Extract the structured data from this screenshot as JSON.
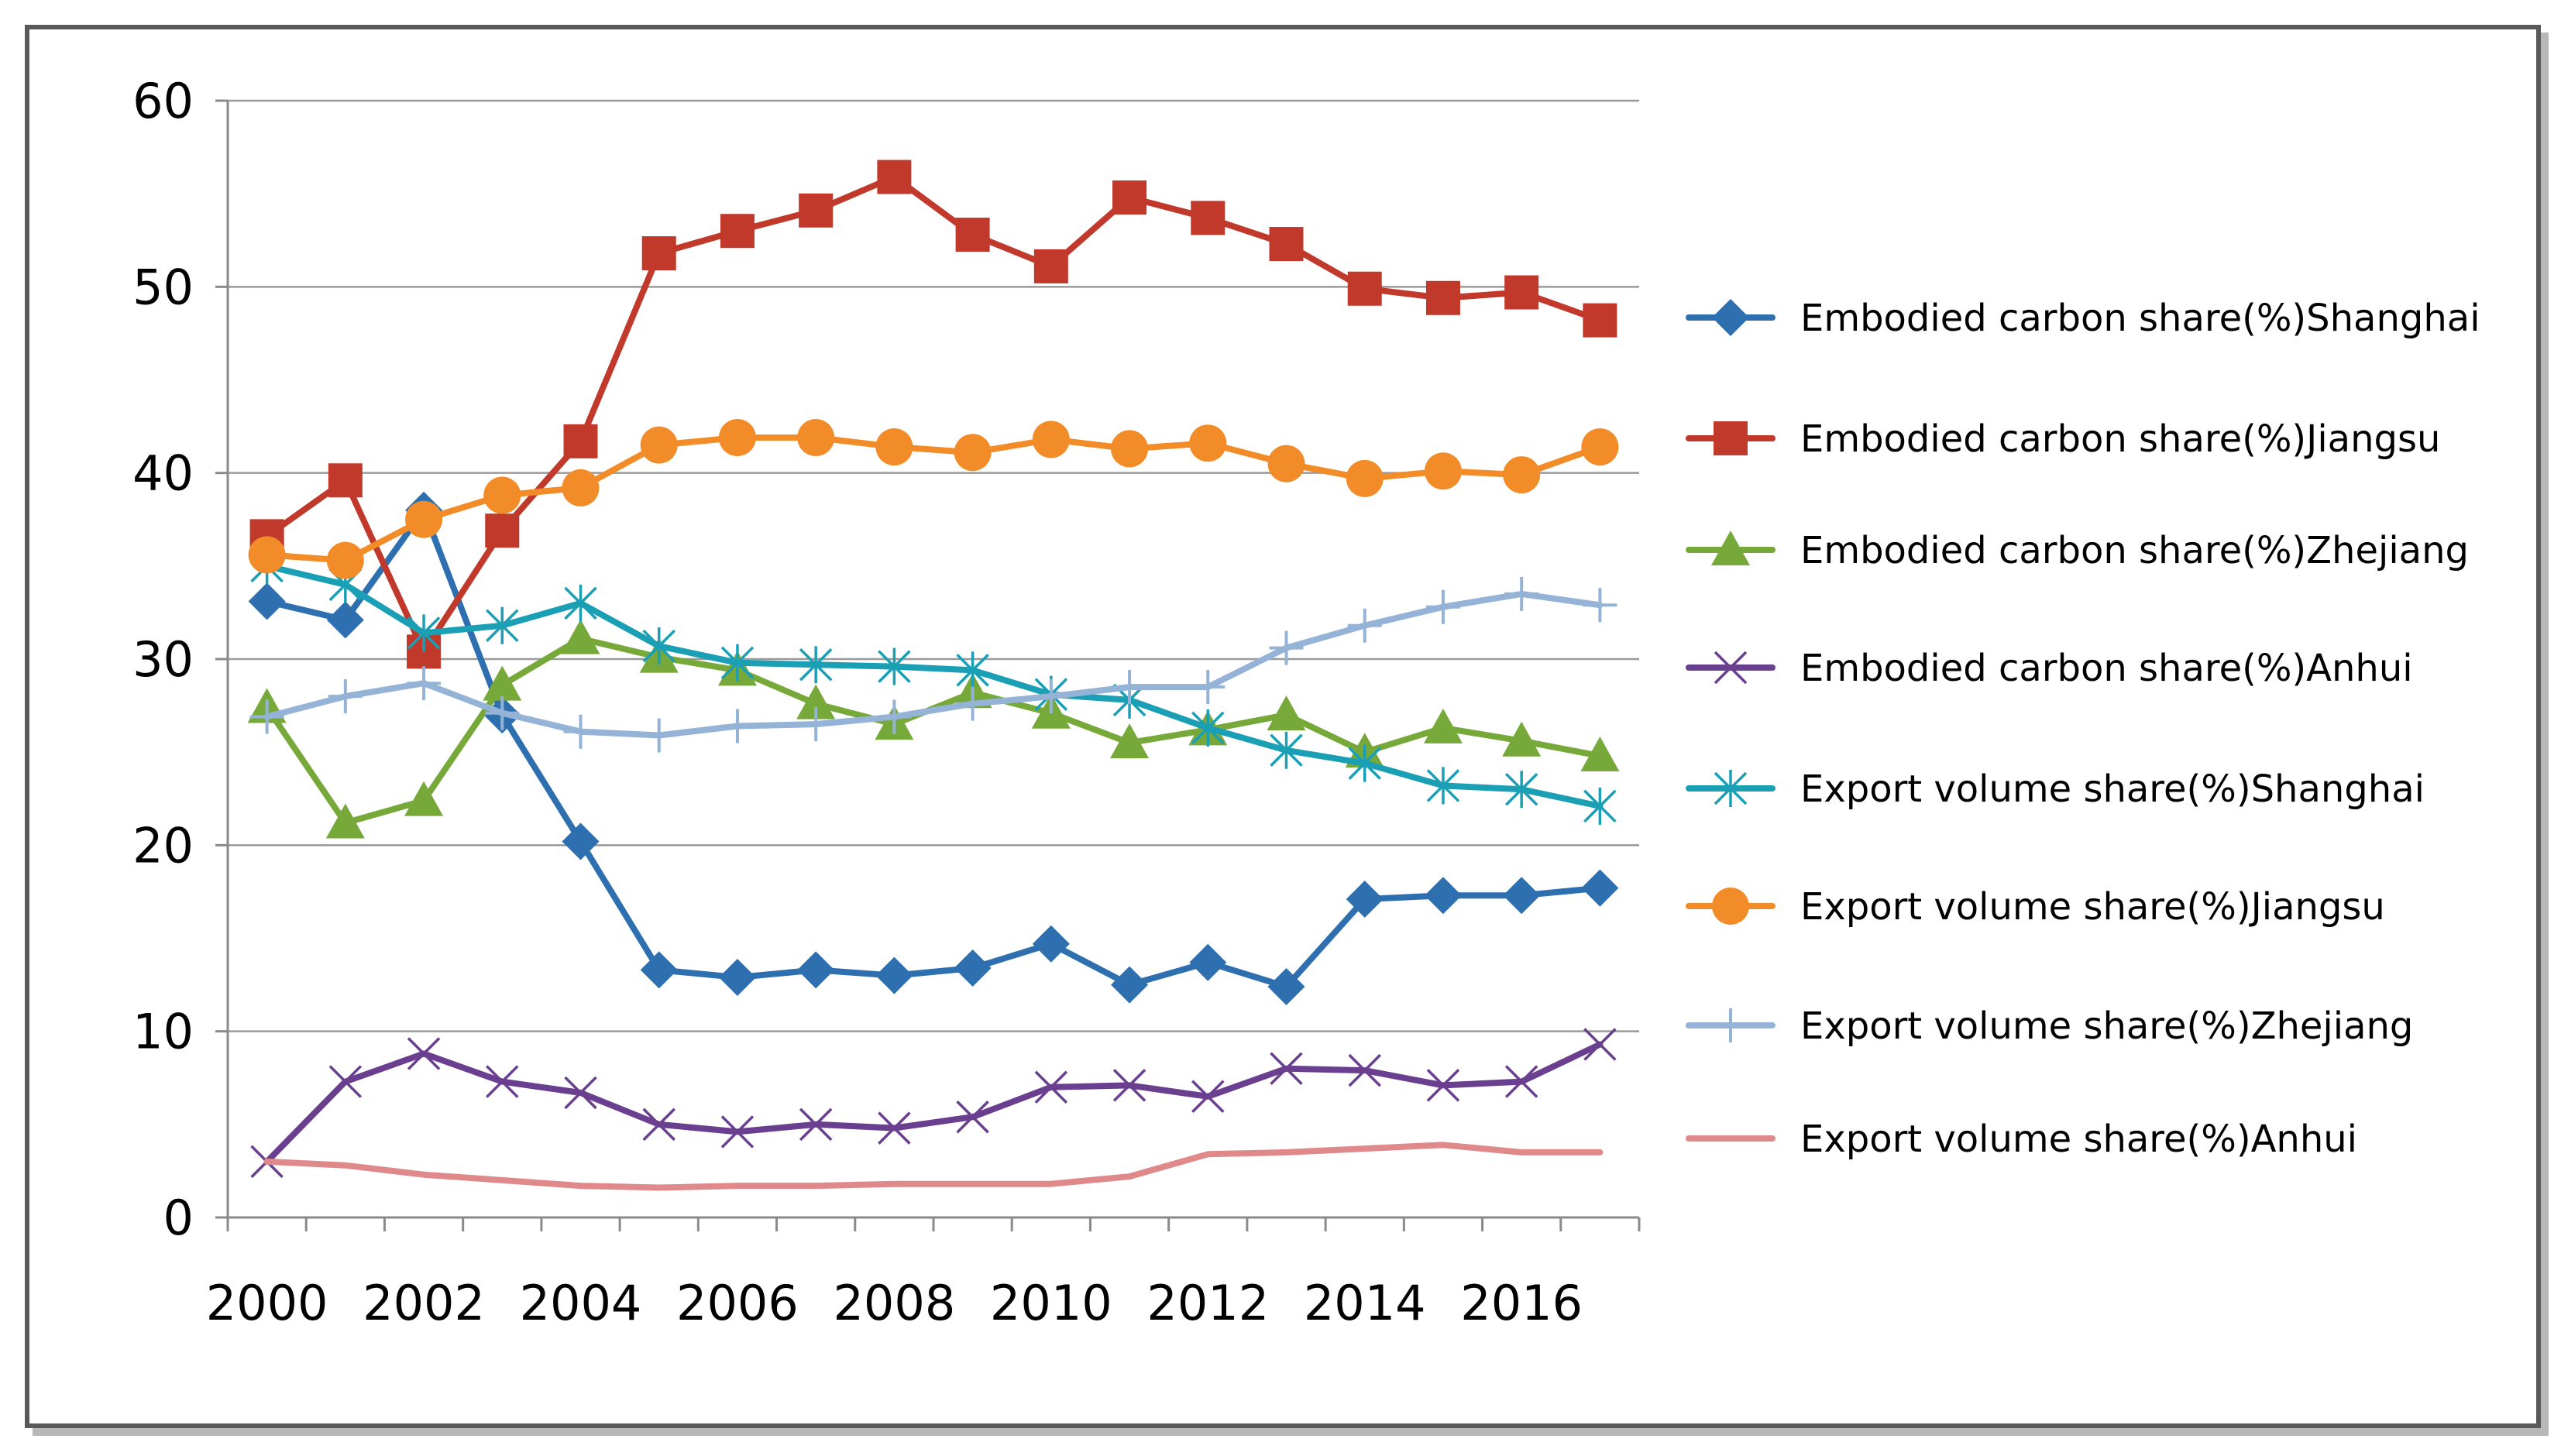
{
  "chart_data": {
    "type": "line",
    "title": "",
    "xlabel": "",
    "ylabel": "",
    "ylim": [
      0,
      60
    ],
    "y_ticks": [
      "0",
      "10",
      "20",
      "30",
      "40",
      "50",
      "60"
    ],
    "x": [
      2000,
      2001,
      2002,
      2003,
      2004,
      2005,
      2006,
      2007,
      2008,
      2009,
      2010,
      2011,
      2012,
      2013,
      2014,
      2015,
      2016,
      2017
    ],
    "x_tick_labels": [
      "2000",
      "2002",
      "2004",
      "2006",
      "2008",
      "2010",
      "2012",
      "2014",
      "2016"
    ],
    "grid": "horizontal",
    "legend_position": "right",
    "series": [
      {
        "name": "Embodied carbon share(%)Shanghai",
        "color": "#2e6fb0",
        "marker": "diamond",
        "values": [
          33.1,
          32.1,
          38.0,
          27.0,
          20.2,
          13.3,
          12.9,
          13.3,
          13.0,
          13.4,
          14.7,
          12.5,
          13.7,
          12.4,
          17.1,
          17.3,
          17.3,
          17.7
        ]
      },
      {
        "name": "Embodied carbon share(%)Jiangsu",
        "color": "#c0392b",
        "marker": "square",
        "values": [
          36.6,
          39.6,
          30.4,
          36.9,
          41.7,
          51.8,
          53.0,
          54.1,
          55.9,
          52.8,
          51.1,
          54.8,
          53.7,
          52.3,
          49.9,
          49.4,
          49.7,
          48.2
        ]
      },
      {
        "name": "Embodied carbon share(%)Zhejiang",
        "color": "#77a83a",
        "marker": "triangle",
        "values": [
          27.4,
          21.2,
          22.4,
          28.6,
          31.1,
          30.1,
          29.4,
          27.6,
          26.5,
          28.2,
          27.1,
          25.5,
          26.2,
          27.0,
          25.0,
          26.3,
          25.6,
          24.8
        ]
      },
      {
        "name": "Embodied carbon share(%)Anhui",
        "color": "#6a3f8f",
        "marker": "x",
        "values": [
          3.0,
          7.3,
          8.8,
          7.3,
          6.7,
          5.0,
          4.6,
          5.0,
          4.8,
          5.4,
          7.0,
          7.1,
          6.5,
          8.0,
          7.9,
          7.1,
          7.3,
          9.3
        ]
      },
      {
        "name": "Export volume share(%)Shanghai",
        "color": "#1b9fb5",
        "marker": "star",
        "values": [
          35.0,
          34.0,
          31.4,
          31.8,
          33.0,
          30.7,
          29.8,
          29.7,
          29.6,
          29.4,
          28.1,
          27.8,
          26.3,
          25.1,
          24.4,
          23.2,
          23.0,
          22.1
        ]
      },
      {
        "name": "Export volume share(%)Jiangsu",
        "color": "#f28c28",
        "marker": "circle",
        "values": [
          35.6,
          35.3,
          37.5,
          38.8,
          39.2,
          41.5,
          41.9,
          41.9,
          41.4,
          41.1,
          41.8,
          41.3,
          41.6,
          40.5,
          39.7,
          40.1,
          39.9,
          41.4
        ]
      },
      {
        "name": "Export volume share(%)Zhejiang",
        "color": "#95b3d7",
        "marker": "plus",
        "values": [
          26.9,
          28.0,
          28.7,
          27.1,
          26.1,
          25.9,
          26.4,
          26.5,
          26.9,
          27.6,
          28.0,
          28.5,
          28.5,
          30.6,
          31.8,
          32.8,
          33.5,
          32.9
        ]
      },
      {
        "name": "Export volume share(%)Anhui",
        "color": "#e0898b",
        "marker": "none",
        "values": [
          3.0,
          2.8,
          2.3,
          2.0,
          1.7,
          1.6,
          1.7,
          1.7,
          1.8,
          1.8,
          1.8,
          2.2,
          3.4,
          3.5,
          3.7,
          3.9,
          3.5,
          3.5
        ]
      }
    ]
  }
}
